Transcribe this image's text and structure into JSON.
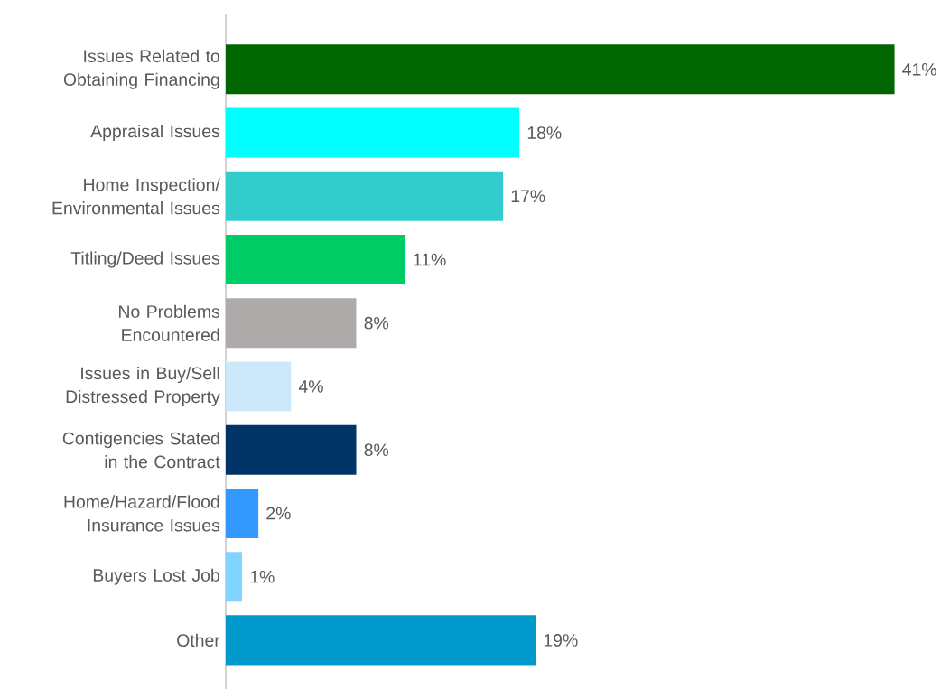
{
  "chart_data": {
    "type": "bar",
    "orientation": "horizontal",
    "categories": [
      "Issues Related to Obtaining Financing",
      "Appraisal Issues",
      "Home Inspection/ Environmental Issues",
      "Titling/Deed Issues",
      "No Problems Encountered",
      "Issues in Buy/Sell Distressed Property",
      "Contigencies Stated in the Contract",
      "Home/Hazard/Flood Insurance Issues",
      "Buyers Lost Job",
      "Other"
    ],
    "values": [
      41,
      18,
      17,
      11,
      8,
      4,
      8,
      2,
      1,
      19
    ],
    "value_labels": [
      "41%",
      "18%",
      "17%",
      "11%",
      "8%",
      "4%",
      "8%",
      "2%",
      "1%",
      "19%"
    ],
    "colors": [
      "#006600",
      "#00ffff",
      "#33cccc",
      "#00cc66",
      "#aeaaaa",
      "#cce9fb",
      "#003366",
      "#3399ff",
      "#80d4ff",
      "#0099cc"
    ]
  }
}
